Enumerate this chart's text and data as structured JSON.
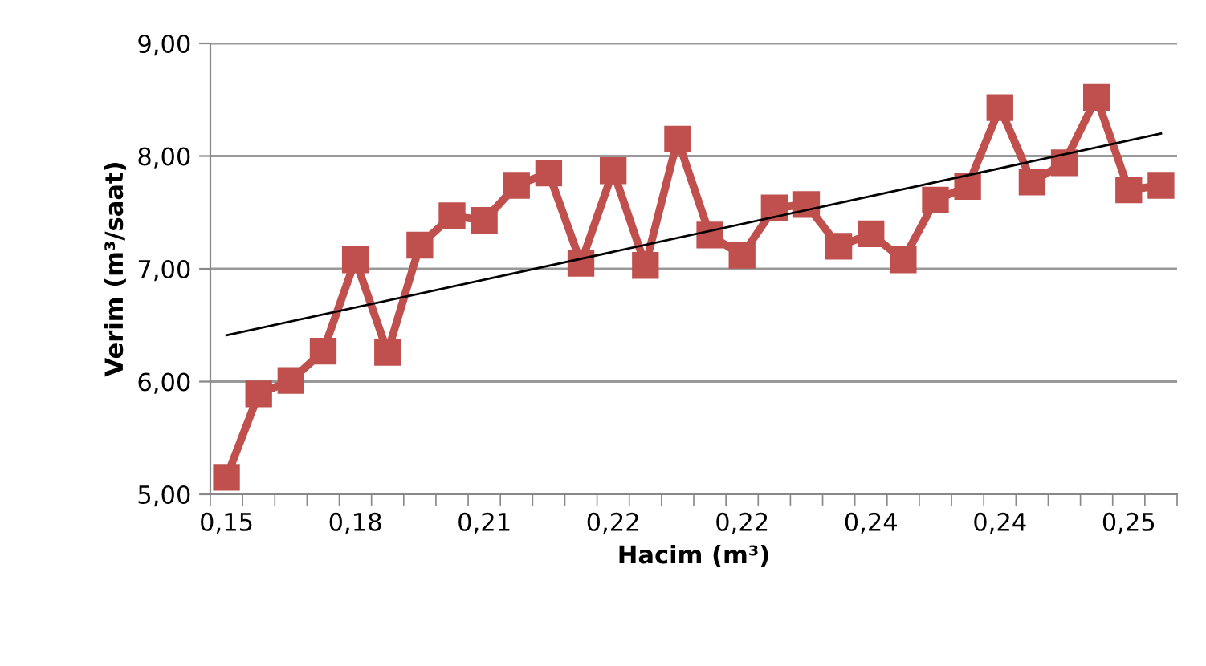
{
  "chart_data": {
    "type": "line",
    "xlabel": "Hacim (m³)",
    "ylabel": "Verim (m³/saat)",
    "categories": [
      "0,15",
      null,
      null,
      null,
      "0,18",
      null,
      null,
      null,
      "0,21",
      null,
      null,
      null,
      "0,22",
      null,
      null,
      null,
      "0,22",
      null,
      null,
      null,
      "0,24",
      null,
      null,
      null,
      "0,24",
      null,
      null,
      null,
      "0,25",
      null
    ],
    "series": [
      {
        "color": "#c0504d",
        "marker": "square",
        "values": [
          5.15,
          5.89,
          6.01,
          6.27,
          7.08,
          6.26,
          7.21,
          7.47,
          7.43,
          7.74,
          7.85,
          7.05,
          7.87,
          7.03,
          8.15,
          7.3,
          7.12,
          7.54,
          7.57,
          7.2,
          7.31,
          7.08,
          7.61,
          7.73,
          8.43,
          7.77,
          7.94,
          8.52,
          7.7,
          7.74
        ]
      },
      {
        "color": "#000000",
        "marker": "none",
        "values": [
          6.41,
          null,
          null,
          null,
          null,
          null,
          null,
          null,
          null,
          null,
          null,
          null,
          null,
          null,
          null,
          null,
          null,
          null,
          null,
          null,
          null,
          null,
          null,
          null,
          null,
          null,
          null,
          null,
          null,
          8.2
        ]
      }
    ],
    "ylim": [
      5,
      9
    ],
    "yticks": [
      {
        "value": 5,
        "label": "5,00"
      },
      {
        "value": 6,
        "label": "6,00"
      },
      {
        "value": 7,
        "label": "7,00"
      },
      {
        "value": 8,
        "label": "8,00"
      },
      {
        "value": 9,
        "label": "9,00"
      }
    ],
    "grid": "y",
    "legend": false
  }
}
